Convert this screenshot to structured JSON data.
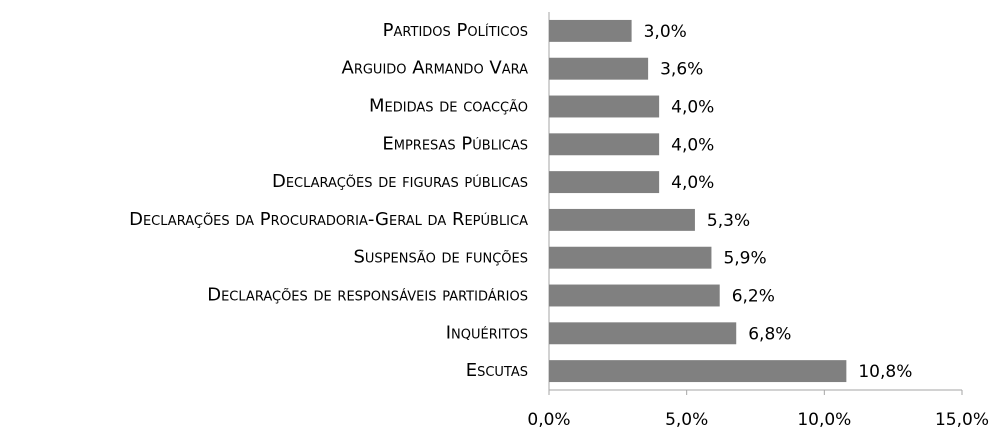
{
  "chart_data": {
    "type": "bar",
    "orientation": "horizontal",
    "categories": [
      "Partidos Políticos",
      "Arguido Armando Vara",
      "Medidas de coacção",
      "Empresas Públicas",
      "Declarações de figuras públicas",
      "Declarações da Procuradoria-Geral da República",
      "Suspensão de funções",
      "Declarações de responsáveis partidários",
      "Inquéritos",
      "Escutas"
    ],
    "values": [
      3.0,
      3.6,
      4.0,
      4.0,
      4.0,
      5.3,
      5.9,
      6.2,
      6.8,
      10.8
    ],
    "value_labels": [
      "3,0%",
      "3,6%",
      "4,0%",
      "4,0%",
      "4,0%",
      "5,3%",
      "5,9%",
      "6,2%",
      "6,8%",
      "10,8%"
    ],
    "color": "#808080",
    "xlim": [
      0,
      15
    ],
    "xticks": [
      {
        "value": 0,
        "label": "0,0%"
      },
      {
        "value": 5,
        "label": "5,0%"
      },
      {
        "value": 10,
        "label": "10,0%"
      },
      {
        "value": 15,
        "label": "15,0%"
      }
    ],
    "grid": false
  }
}
